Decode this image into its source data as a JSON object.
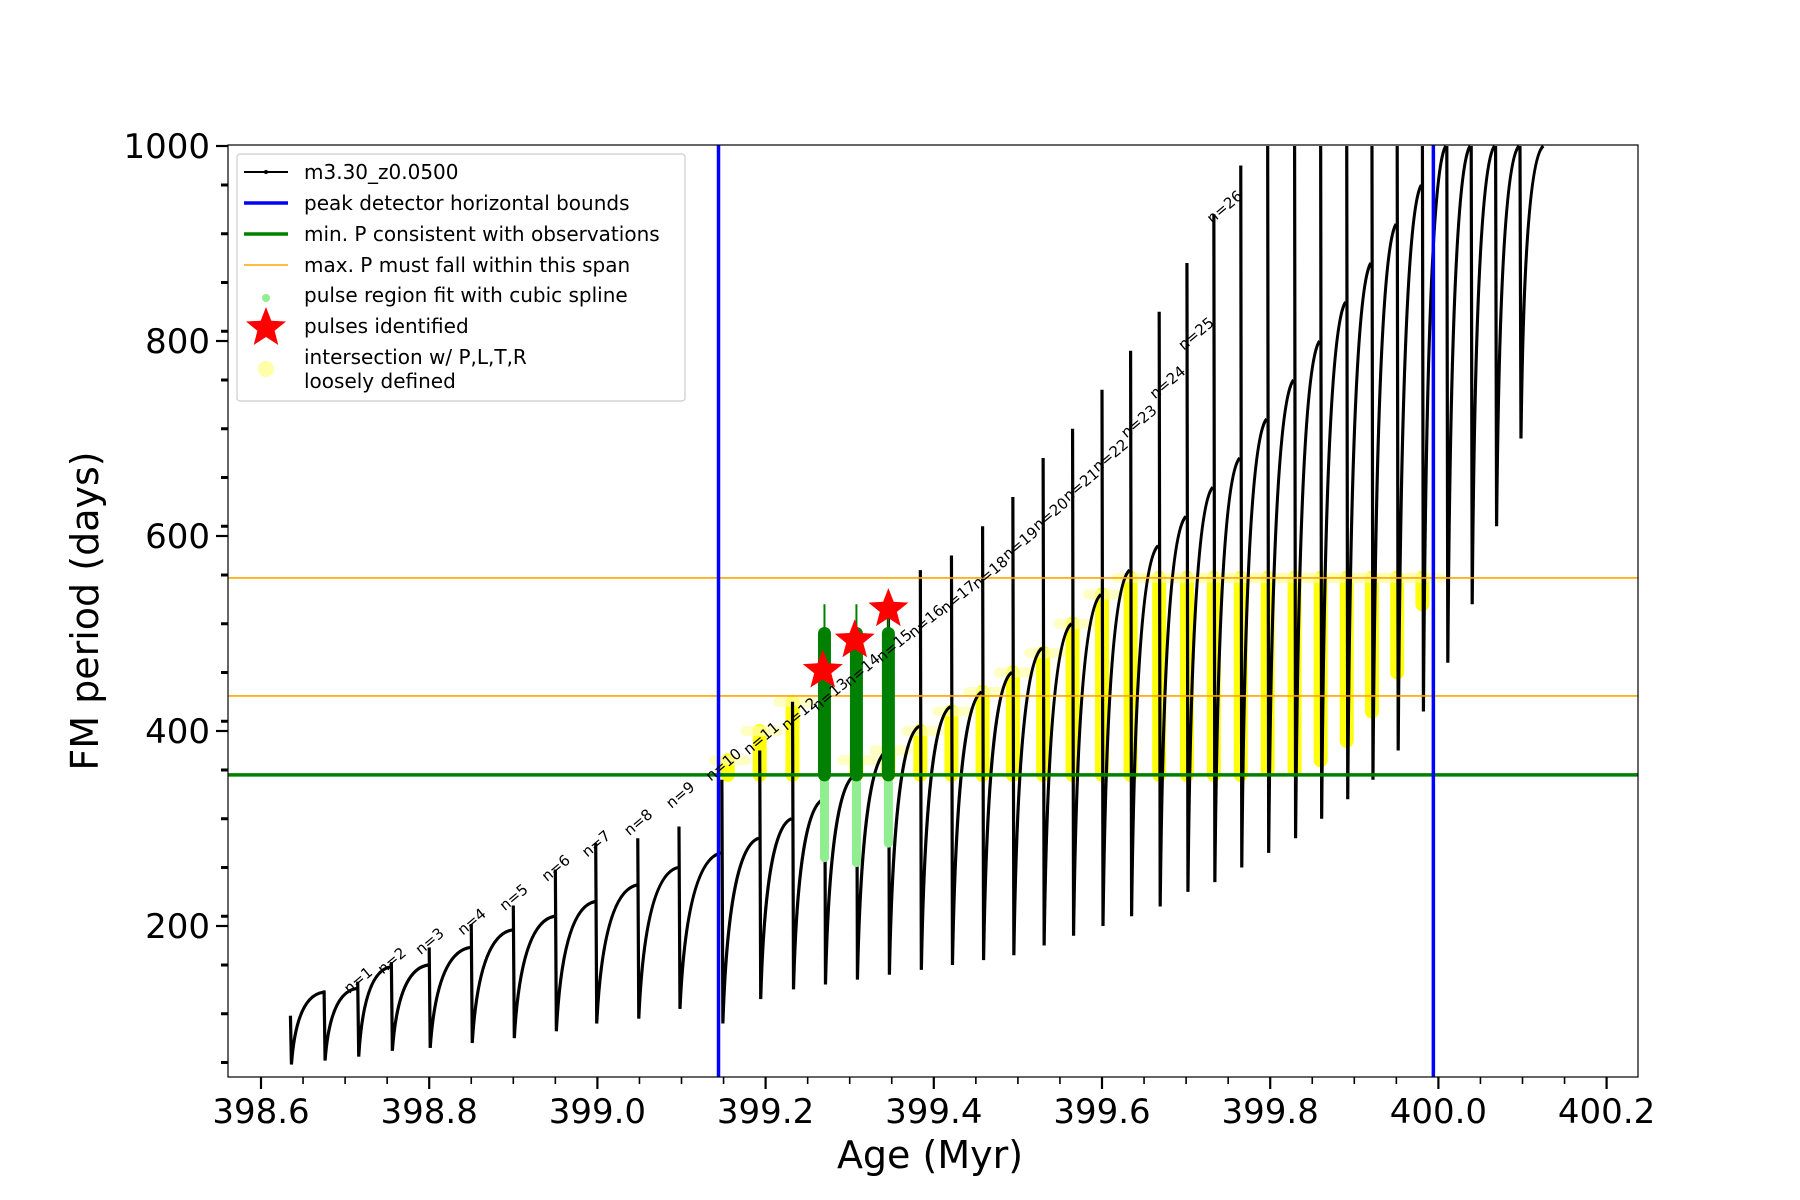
{
  "chart_data": {
    "type": "scatter",
    "title": "",
    "xlabel": "Age (Myr)",
    "ylabel": "FM period (days)",
    "xlim": [
      398.56,
      400.23
    ],
    "ylim": [
      50,
      1000
    ],
    "x_ticks": [
      398.6,
      398.8,
      399.0,
      399.2,
      399.4,
      399.6,
      399.8,
      400.0,
      400.2
    ],
    "x_tick_labels": [
      "398.6",
      "398.8",
      "399.0",
      "399.2",
      "399.4",
      "399.6",
      "399.8",
      "400.0",
      "400.2"
    ],
    "y_ticks": [
      200,
      400,
      600,
      800,
      1000
    ],
    "y_tick_labels": [
      "200",
      "400",
      "600",
      "800",
      "1000"
    ],
    "grid": false,
    "legend_position": "top-left",
    "legend": [
      {
        "label": "m3.30_z0.0500",
        "color": "#000000",
        "marker": "line-dot"
      },
      {
        "label": "peak detector horizontal bounds",
        "color": "#0000ff",
        "marker": "line"
      },
      {
        "label": "min. P consistent with observations",
        "color": "#008000",
        "marker": "line"
      },
      {
        "label": "max. P must fall within this span",
        "color": "#ffa500",
        "marker": "thin-line"
      },
      {
        "label": "pulse region fit with cubic spline",
        "color": "#90ee90",
        "marker": "dot"
      },
      {
        "label": "pulses identified",
        "color": "#ff0000",
        "marker": "star"
      },
      {
        "label": "intersection w/ P,L,T,R",
        "label2": "loosely defined",
        "color": "#ffffaa",
        "marker": "circle"
      }
    ],
    "vertical_lines": [
      {
        "name": "peak detector horizontal bounds",
        "x": 399.144,
        "color": "#0000ff"
      },
      {
        "name": "peak detector horizontal bounds",
        "x": 399.994,
        "color": "#0000ff"
      }
    ],
    "horizontal_lines": [
      {
        "name": "min. P consistent with observations",
        "y": 355,
        "color": "#008000"
      },
      {
        "name": "max. P must fall within this span",
        "y": 436,
        "color": "#ffa500"
      },
      {
        "name": "max. P must fall within this span",
        "y": 557,
        "color": "#ffa500"
      }
    ],
    "series": [
      {
        "name": "m3.30_z0.0500",
        "color": "#000000",
        "pulses": [
          {
            "x": 398.635,
            "peak": 108,
            "trough": 58,
            "end": 132
          },
          {
            "x": 398.675,
            "peak": 134,
            "trough": 62,
            "end": 136
          },
          {
            "x": 398.715,
            "peak": 143,
            "trough": 66,
            "end": 158
          },
          {
            "x": 398.755,
            "peak": 163,
            "trough": 72,
            "end": 160
          },
          {
            "x": 398.8,
            "peak": 178,
            "trough": 75,
            "end": 178
          },
          {
            "x": 398.85,
            "peak": 202,
            "trough": 80,
            "end": 196
          },
          {
            "x": 398.9,
            "peak": 221,
            "trough": 85,
            "end": 210
          },
          {
            "x": 398.95,
            "peak": 258,
            "trough": 92,
            "end": 225
          },
          {
            "x": 398.998,
            "peak": 285,
            "trough": 100,
            "end": 242
          },
          {
            "x": 399.048,
            "peak": 290,
            "trough": 105,
            "end": 260
          },
          {
            "x": 399.097,
            "peak": 302,
            "trough": 115,
            "end": 275
          },
          {
            "x": 399.148,
            "peak": 350,
            "trough": 100,
            "end": 290
          },
          {
            "x": 399.193,
            "peak": 380,
            "trough": 125,
            "end": 310
          },
          {
            "x": 399.232,
            "peak": 430,
            "trough": 135,
            "end": 330
          },
          {
            "x": 399.27,
            "peak": 470,
            "trough": 140,
            "end": 355
          },
          {
            "x": 399.308,
            "peak": 505,
            "trough": 145,
            "end": 380
          },
          {
            "x": 399.346,
            "peak": 540,
            "trough": 150,
            "end": 405
          },
          {
            "x": 399.384,
            "peak": 565,
            "trough": 155,
            "end": 425
          },
          {
            "x": 399.421,
            "peak": 580,
            "trough": 160,
            "end": 440
          },
          {
            "x": 399.458,
            "peak": 610,
            "trough": 165,
            "end": 460
          },
          {
            "x": 399.494,
            "peak": 640,
            "trough": 170,
            "end": 485
          },
          {
            "x": 399.53,
            "peak": 680,
            "trough": 180,
            "end": 510
          },
          {
            "x": 399.565,
            "peak": 710,
            "trough": 190,
            "end": 540
          },
          {
            "x": 399.6,
            "peak": 750,
            "trough": 200,
            "end": 565
          },
          {
            "x": 399.634,
            "peak": 790,
            "trough": 210,
            "end": 590
          },
          {
            "x": 399.668,
            "peak": 830,
            "trough": 220,
            "end": 620
          },
          {
            "x": 399.701,
            "peak": 880,
            "trough": 235,
            "end": 650
          },
          {
            "x": 399.733,
            "peak": 930,
            "trough": 245,
            "end": 680
          },
          {
            "x": 399.765,
            "peak": 980,
            "trough": 260,
            "end": 720
          },
          {
            "x": 399.797,
            "peak": 1000,
            "trough": 275,
            "end": 760
          },
          {
            "x": 399.829,
            "peak": 1000,
            "trough": 290,
            "end": 800
          },
          {
            "x": 399.86,
            "peak": 1000,
            "trough": 310,
            "end": 840
          },
          {
            "x": 399.891,
            "peak": 1000,
            "trough": 330,
            "end": 880
          },
          {
            "x": 399.921,
            "peak": 1000,
            "trough": 350,
            "end": 920
          },
          {
            "x": 399.951,
            "peak": 1000,
            "trough": 380,
            "end": 960
          },
          {
            "x": 399.981,
            "peak": 1000,
            "trough": 420,
            "end": 1000
          },
          {
            "x": 400.01,
            "peak": 1000,
            "trough": 470,
            "end": 1000
          },
          {
            "x": 400.039,
            "peak": 1000,
            "trough": 530,
            "end": 1000
          },
          {
            "x": 400.068,
            "peak": 1000,
            "trough": 610,
            "end": 1000
          },
          {
            "x": 400.097,
            "peak": 1000,
            "trough": 700,
            "end": 1000
          }
        ]
      },
      {
        "name": "pulse region fit with cubic spline",
        "color": "#90ee90",
        "segments": [
          {
            "x": 399.27,
            "y_min": 270,
            "y_max": 500
          },
          {
            "x": 399.308,
            "y_min": 265,
            "y_max": 500
          },
          {
            "x": 399.346,
            "y_min": 285,
            "y_max": 500
          }
        ]
      },
      {
        "name": "min. P consistent with observations",
        "color": "#008000",
        "segments": [
          {
            "x": 399.27,
            "y_min": 355,
            "y_max": 500
          },
          {
            "x": 399.308,
            "y_min": 355,
            "y_max": 500
          },
          {
            "x": 399.346,
            "y_min": 355,
            "y_max": 500
          }
        ]
      },
      {
        "name": "pulses identified",
        "color": "#ff0000",
        "points": [
          {
            "x": 399.268,
            "y": 462
          },
          {
            "x": 399.306,
            "y": 493
          },
          {
            "x": 399.346,
            "y": 525
          }
        ]
      },
      {
        "name": "intersection w/ P,L,T,R loosely defined",
        "color": "#ffff00",
        "columns": [
          {
            "x": 399.155,
            "y_min": 355,
            "y_max": 370
          },
          {
            "x": 399.193,
            "y_min": 355,
            "y_max": 400
          },
          {
            "x": 399.232,
            "y_min": 355,
            "y_max": 430
          },
          {
            "x": 399.308,
            "y_min": 355,
            "y_max": 370
          },
          {
            "x": 399.346,
            "y_min": 355,
            "y_max": 380
          },
          {
            "x": 399.384,
            "y_min": 355,
            "y_max": 400
          },
          {
            "x": 399.421,
            "y_min": 355,
            "y_max": 420
          },
          {
            "x": 399.458,
            "y_min": 355,
            "y_max": 440
          },
          {
            "x": 399.494,
            "y_min": 355,
            "y_max": 460
          },
          {
            "x": 399.53,
            "y_min": 355,
            "y_max": 480
          },
          {
            "x": 399.565,
            "y_min": 355,
            "y_max": 510
          },
          {
            "x": 399.6,
            "y_min": 355,
            "y_max": 540
          },
          {
            "x": 399.634,
            "y_min": 355,
            "y_max": 557
          },
          {
            "x": 399.668,
            "y_min": 355,
            "y_max": 557
          },
          {
            "x": 399.701,
            "y_min": 355,
            "y_max": 557
          },
          {
            "x": 399.733,
            "y_min": 355,
            "y_max": 557
          },
          {
            "x": 399.765,
            "y_min": 355,
            "y_max": 557
          },
          {
            "x": 399.797,
            "y_min": 360,
            "y_max": 557
          },
          {
            "x": 399.829,
            "y_min": 360,
            "y_max": 557
          },
          {
            "x": 399.86,
            "y_min": 370,
            "y_max": 557
          },
          {
            "x": 399.891,
            "y_min": 390,
            "y_max": 557
          },
          {
            "x": 399.921,
            "y_min": 420,
            "y_max": 557
          },
          {
            "x": 399.951,
            "y_min": 460,
            "y_max": 557
          },
          {
            "x": 399.981,
            "y_min": 530,
            "y_max": 557
          }
        ]
      }
    ],
    "annotations": [
      {
        "text": "n=1",
        "x": 398.705,
        "y": 130
      },
      {
        "text": "n=2",
        "x": 398.745,
        "y": 150
      },
      {
        "text": "n=3",
        "x": 398.79,
        "y": 170
      },
      {
        "text": "n=4",
        "x": 398.84,
        "y": 190
      },
      {
        "text": "n=5",
        "x": 398.89,
        "y": 215
      },
      {
        "text": "n=6",
        "x": 398.94,
        "y": 245
      },
      {
        "text": "n=7",
        "x": 398.988,
        "y": 270
      },
      {
        "text": "n=8",
        "x": 399.038,
        "y": 292
      },
      {
        "text": "n=9",
        "x": 399.088,
        "y": 320
      },
      {
        "text": "n=10",
        "x": 399.135,
        "y": 348
      },
      {
        "text": "n=11",
        "x": 399.18,
        "y": 375
      },
      {
        "text": "n=12",
        "x": 399.225,
        "y": 400
      },
      {
        "text": "n=13",
        "x": 399.262,
        "y": 420
      },
      {
        "text": "n=14",
        "x": 399.3,
        "y": 445
      },
      {
        "text": "n=15",
        "x": 399.338,
        "y": 470
      },
      {
        "text": "n=16",
        "x": 399.376,
        "y": 495
      },
      {
        "text": "n=17",
        "x": 399.414,
        "y": 520
      },
      {
        "text": "n=18",
        "x": 399.452,
        "y": 545
      },
      {
        "text": "n=19",
        "x": 399.488,
        "y": 575
      },
      {
        "text": "n=20",
        "x": 399.524,
        "y": 605
      },
      {
        "text": "n=21",
        "x": 399.56,
        "y": 635
      },
      {
        "text": "n=22",
        "x": 399.595,
        "y": 665
      },
      {
        "text": "n=23",
        "x": 399.629,
        "y": 700
      },
      {
        "text": "n=24",
        "x": 399.663,
        "y": 740
      },
      {
        "text": "n=25",
        "x": 399.697,
        "y": 790
      },
      {
        "text": "n=26",
        "x": 399.731,
        "y": 920
      }
    ]
  }
}
